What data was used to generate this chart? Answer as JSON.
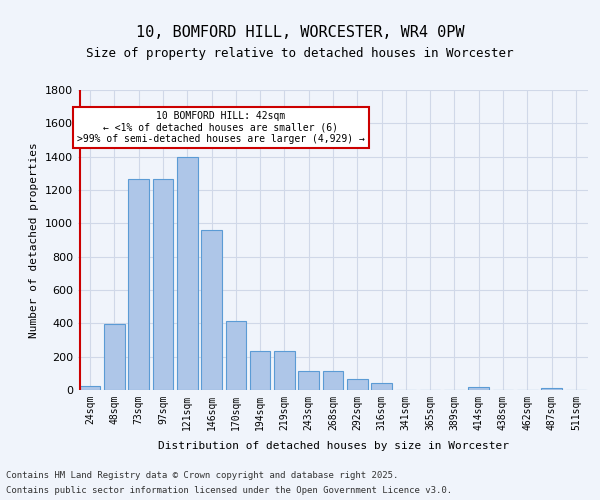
{
  "title_line1": "10, BOMFORD HILL, WORCESTER, WR4 0PW",
  "title_line2": "Size of property relative to detached houses in Worcester",
  "xlabel": "Distribution of detached houses by size in Worcester",
  "ylabel": "Number of detached properties",
  "categories": [
    "24sqm",
    "48sqm",
    "73sqm",
    "97sqm",
    "121sqm",
    "146sqm",
    "170sqm",
    "194sqm",
    "219sqm",
    "243sqm",
    "268sqm",
    "292sqm",
    "316sqm",
    "341sqm",
    "365sqm",
    "389sqm",
    "414sqm",
    "438sqm",
    "462sqm",
    "487sqm",
    "511sqm"
  ],
  "values": [
    25,
    395,
    1265,
    1265,
    1400,
    960,
    415,
    235,
    235,
    115,
    115,
    65,
    42,
    0,
    0,
    0,
    20,
    0,
    0,
    15,
    0
  ],
  "bar_color": "#aec6e8",
  "bar_edge_color": "#5b9bd5",
  "grid_color": "#d0d8e8",
  "annotation_box_text": "10 BOMFORD HILL: 42sqm\n← <1% of detached houses are smaller (6)\n>99% of semi-detached houses are larger (4,929) →",
  "annotation_box_color": "#ffffff",
  "annotation_box_edge_color": "#cc0000",
  "vline_color": "#cc0000",
  "vline_x": 0,
  "ylim": [
    0,
    1800
  ],
  "yticks": [
    0,
    200,
    400,
    600,
    800,
    1000,
    1200,
    1400,
    1600,
    1800
  ],
  "footer_line1": "Contains HM Land Registry data © Crown copyright and database right 2025.",
  "footer_line2": "Contains public sector information licensed under the Open Government Licence v3.0.",
  "bg_color": "#f0f4fb",
  "plot_bg_color": "#f0f4fb"
}
